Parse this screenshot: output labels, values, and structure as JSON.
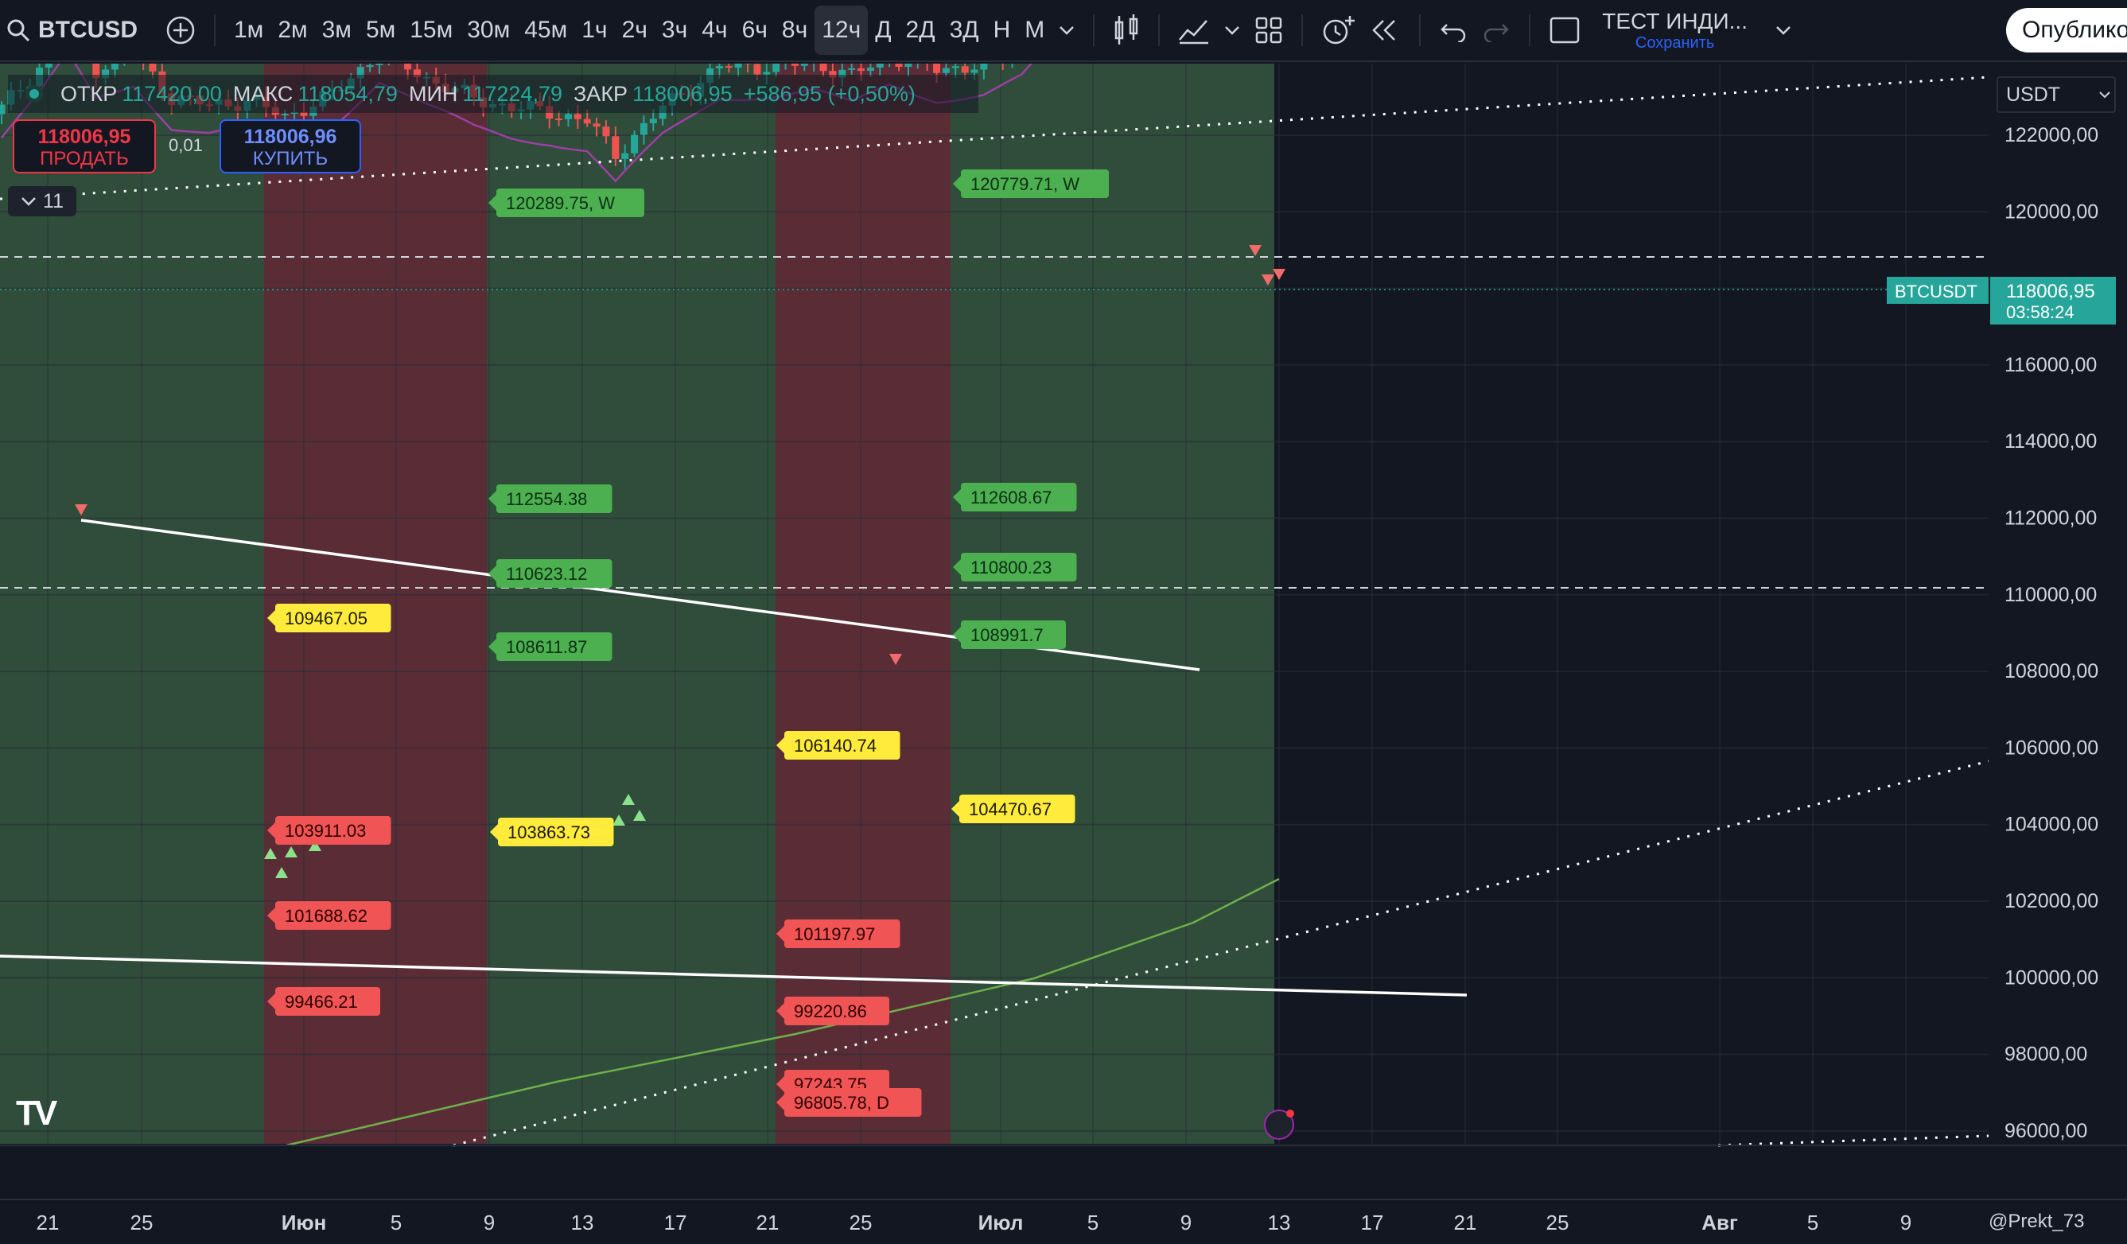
{
  "toolbar": {
    "symbol": "BTCUSD",
    "intervals": [
      "1м",
      "2м",
      "3м",
      "5м",
      "15м",
      "30м",
      "45м",
      "1ч",
      "2ч",
      "3ч",
      "4ч",
      "6ч",
      "8ч",
      "12ч",
      "Д",
      "2Д",
      "3Д",
      "Н",
      "М"
    ],
    "active_interval": "12ч",
    "indicator_title": "ТЕСТ ИНДИ...",
    "save_label": "Сохранить",
    "publish_label": "Опублико"
  },
  "legend": {
    "open_label": "ОТКР",
    "open": "117420,00",
    "high_label": "МАКС",
    "high": "118054,79",
    "low_label": "МИН",
    "low": "117224,79",
    "close_label": "ЗАКР",
    "close": "118006,95",
    "change": "+586,95 (+0,50%)"
  },
  "trade": {
    "sell_price": "118006,95",
    "sell_label": "ПРОДАТЬ",
    "spread": "0,01",
    "buy_price": "118006,96",
    "buy_label": "КУПИТЬ"
  },
  "collapse_count": "11",
  "currency": "USDT",
  "price_axis": {
    "ticks": [
      "122000,00",
      "120000,00",
      "118000,00",
      "116000,00",
      "114000,00",
      "112000,00",
      "110000,00",
      "108000,00",
      "106000,00",
      "104000,00",
      "102000,00",
      "100000,00",
      "98000,00",
      "96000,00"
    ],
    "symbol_tag": "BTCUSDT",
    "last_price": "118006,95",
    "countdown": "03:58:24"
  },
  "time_axis": [
    "21",
    "25",
    "Июн",
    "5",
    "9",
    "13",
    "17",
    "21",
    "25",
    "Июл",
    "5",
    "9",
    "13",
    "17",
    "21",
    "25",
    "Авг",
    "5",
    "9"
  ],
  "levels": {
    "green": [
      "120289.75, W",
      "120779.71, W",
      "112554.38",
      "112608.67",
      "110623.12",
      "110800.23",
      "108611.87",
      "108991.7"
    ],
    "yellow": [
      "109467.05",
      "106140.74",
      "103863.73",
      "104470.67"
    ],
    "red": [
      "103911.03",
      "101688.62",
      "99466.21",
      "101197.97",
      "99220.86",
      "97243.75",
      "96805.78, D"
    ]
  },
  "watermark": "@Prekt_73",
  "colors": {
    "bull": "#26a69a",
    "bear": "#ef5350",
    "bg": "#131722",
    "green_zone": "#2f4d3a",
    "red_zone": "#5a2d36"
  }
}
